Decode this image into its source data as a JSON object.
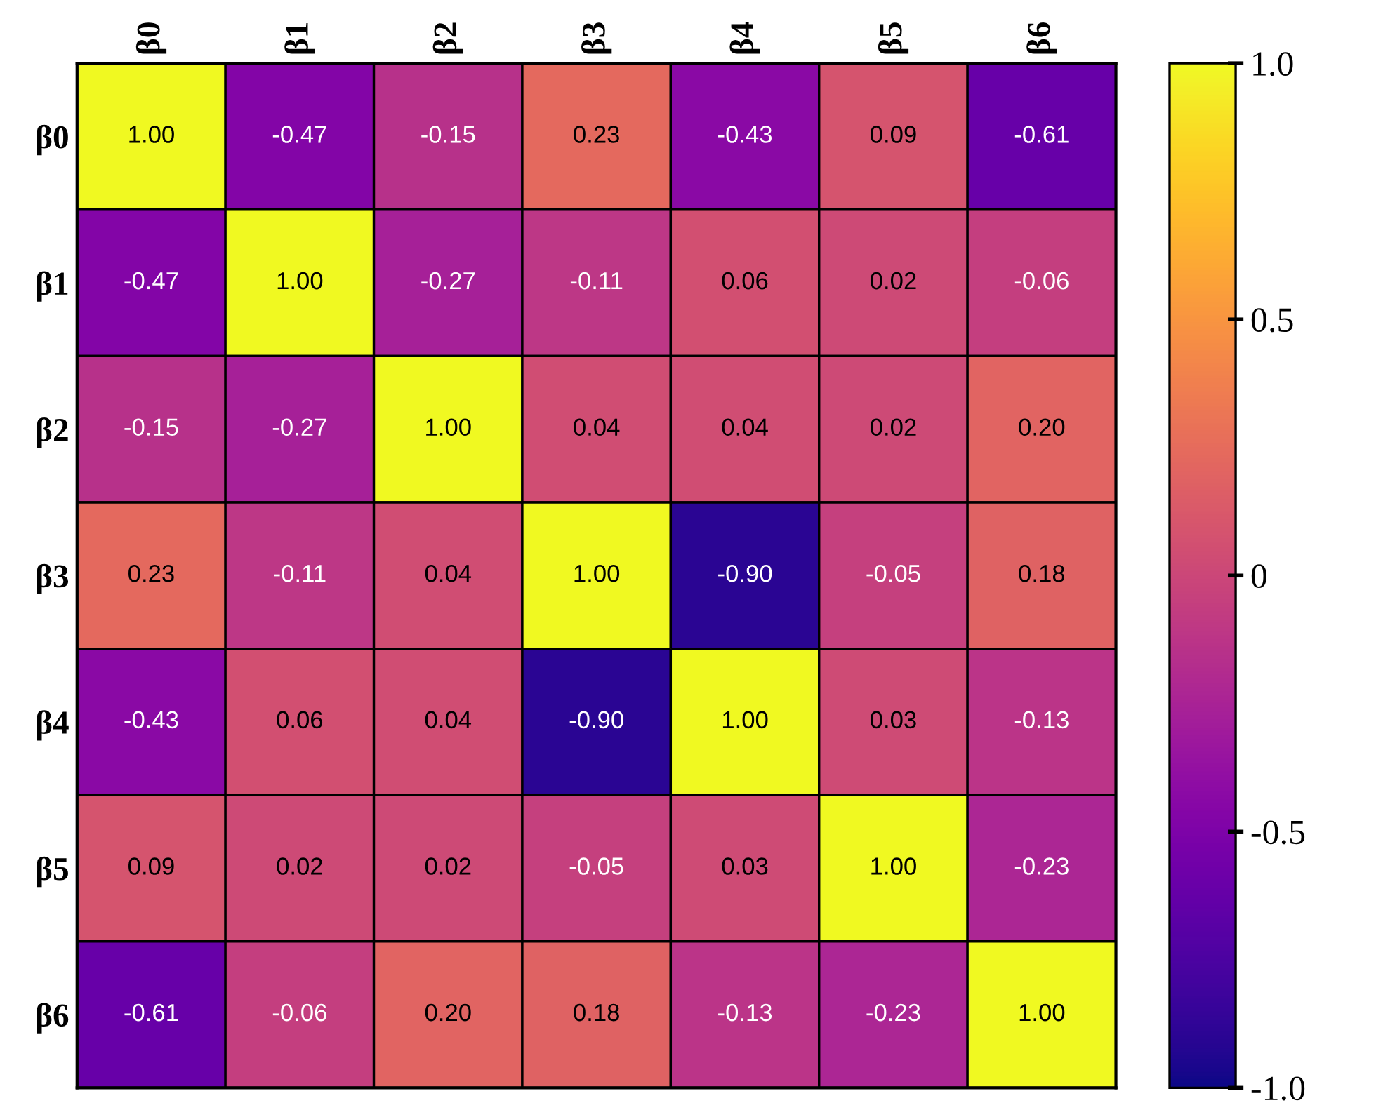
{
  "chart_data": {
    "type": "heatmap",
    "categories": [
      "β0",
      "β1",
      "β2",
      "β3",
      "β4",
      "β5",
      "β6"
    ],
    "y_categories": [
      "β0",
      "β1",
      "β2",
      "β3",
      "β4",
      "β5",
      "β6"
    ],
    "cells": [
      [
        1.0,
        -0.47,
        -0.15,
        0.23,
        -0.43,
        0.09,
        -0.61
      ],
      [
        -0.47,
        1.0,
        -0.27,
        -0.11,
        0.06,
        0.02,
        -0.06
      ],
      [
        -0.15,
        -0.27,
        1.0,
        0.04,
        0.04,
        0.02,
        0.2
      ],
      [
        0.23,
        -0.11,
        0.04,
        1.0,
        -0.9,
        -0.05,
        0.18
      ],
      [
        -0.43,
        0.06,
        0.04,
        -0.9,
        1.0,
        0.03,
        -0.13
      ],
      [
        0.09,
        0.02,
        0.02,
        -0.05,
        0.03,
        1.0,
        -0.23
      ],
      [
        -0.61,
        -0.06,
        0.2,
        0.18,
        -0.13,
        -0.23,
        1.0
      ]
    ],
    "cell_labels": [
      [
        "1.00",
        "-0.47",
        "-0.15",
        "0.23",
        "-0.43",
        "0.09",
        "-0.61"
      ],
      [
        "-0.47",
        "1.00",
        "-0.27",
        "-0.11",
        "0.06",
        "0.02",
        "-0.06"
      ],
      [
        "-0.15",
        "-0.27",
        "1.00",
        "0.04",
        "0.04",
        "0.02",
        "0.20"
      ],
      [
        "0.23",
        "-0.11",
        "0.04",
        "1.00",
        "-0.90",
        "-0.05",
        "0.18"
      ],
      [
        "-0.43",
        "0.06",
        "0.04",
        "-0.90",
        "1.00",
        "0.03",
        "-0.13"
      ],
      [
        "0.09",
        "0.02",
        "0.02",
        "-0.05",
        "0.03",
        "1.00",
        "-0.23"
      ],
      [
        "-0.61",
        "-0.06",
        "0.20",
        "0.18",
        "-0.13",
        "-0.23",
        "1.00"
      ]
    ],
    "clim": [
      -1,
      1
    ],
    "cticks": [
      {
        "value": 1,
        "label": "1.0"
      },
      0.5,
      0,
      -0.5,
      {
        "value": -1,
        "label": "-1.0"
      }
    ]
  }
}
